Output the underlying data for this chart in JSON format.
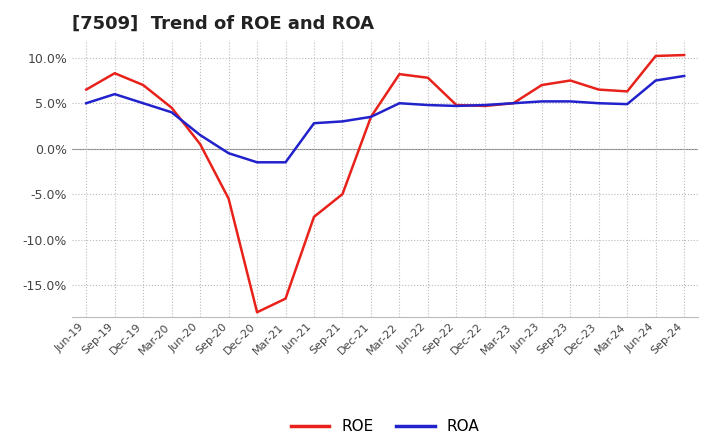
{
  "title": "[7509]  Trend of ROE and ROA",
  "x_labels": [
    "Jun-19",
    "Sep-19",
    "Dec-19",
    "Mar-20",
    "Jun-20",
    "Sep-20",
    "Dec-20",
    "Mar-21",
    "Jun-21",
    "Sep-21",
    "Dec-21",
    "Mar-22",
    "Jun-22",
    "Sep-22",
    "Dec-22",
    "Mar-23",
    "Jun-23",
    "Sep-23",
    "Dec-23",
    "Mar-24",
    "Jun-24",
    "Sep-24"
  ],
  "roe": [
    6.5,
    8.3,
    7.0,
    4.5,
    0.5,
    -5.5,
    -18.0,
    -16.5,
    -7.5,
    -5.0,
    3.5,
    8.2,
    7.8,
    4.8,
    4.7,
    5.0,
    7.0,
    7.5,
    6.5,
    6.3,
    10.2,
    10.3
  ],
  "roa": [
    5.0,
    6.0,
    5.0,
    4.0,
    1.5,
    -0.5,
    -1.5,
    -1.5,
    2.8,
    3.0,
    3.5,
    5.0,
    4.8,
    4.7,
    4.8,
    5.0,
    5.2,
    5.2,
    5.0,
    4.9,
    7.5,
    8.0
  ],
  "roe_color": "#e8221a",
  "roa_color": "#2222cc",
  "background_color": "#ffffff",
  "plot_bg_color": "#ffffff",
  "grid_color": "#bbbbbb",
  "ylim": [
    -18.5,
    12
  ],
  "yticks": [
    -15.0,
    -10.0,
    -5.0,
    0.0,
    5.0,
    10.0
  ],
  "title_fontsize": 13,
  "legend_labels": [
    "ROE",
    "ROA"
  ],
  "line_width": 1.8
}
